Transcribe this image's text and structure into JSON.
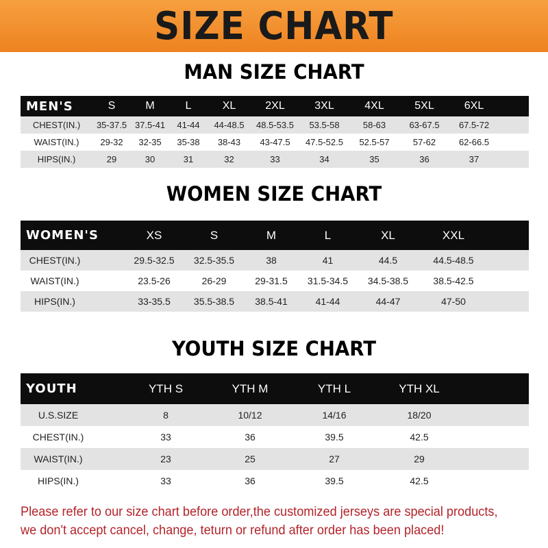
{
  "banner_title": "SIZE CHART",
  "colors": {
    "banner": "#f08a24",
    "header_row": "#0d0d0d",
    "stripe": "#e3e3e3",
    "note": "#b3232a"
  },
  "men": {
    "title": "MAN SIZE CHART",
    "header": [
      "MEN'S",
      "S",
      "M",
      "L",
      "XL",
      "2XL",
      "3XL",
      "4XL",
      "5XL",
      "6XL"
    ],
    "rows": [
      [
        "CHEST(IN.)",
        "35-37.5",
        "37.5-41",
        "41-44",
        "44-48.5",
        "48.5-53.5",
        "53.5-58",
        "58-63",
        "63-67.5",
        "67.5-72"
      ],
      [
        "WAIST(IN.)",
        "29-32",
        "32-35",
        "35-38",
        "38-43",
        "43-47.5",
        "47.5-52.5",
        "52.5-57",
        "57-62",
        "62-66.5"
      ],
      [
        "HIPS(IN.)",
        "29",
        "30",
        "31",
        "32",
        "33",
        "34",
        "35",
        "36",
        "37"
      ]
    ]
  },
  "women": {
    "title": "WOMEN SIZE CHART",
    "header": [
      "WOMEN'S",
      "XS",
      "S",
      "M",
      "L",
      "XL",
      "XXL"
    ],
    "rows": [
      [
        "CHEST(IN.)",
        "29.5-32.5",
        "32.5-35.5",
        "38",
        "41",
        "44.5",
        "44.5-48.5"
      ],
      [
        "WAIST(IN.)",
        "23.5-26",
        "26-29",
        "29-31.5",
        "31.5-34.5",
        "34.5-38.5",
        "38.5-42.5"
      ],
      [
        "HIPS(IN.)",
        "33-35.5",
        "35.5-38.5",
        "38.5-41",
        "41-44",
        "44-47",
        "47-50"
      ]
    ]
  },
  "youth": {
    "title": "YOUTH SIZE CHART",
    "header": [
      "YOUTH",
      "YTH S",
      "YTH M",
      "YTH L",
      "YTH XL"
    ],
    "rows": [
      [
        "U.S.SIZE",
        "8",
        "10/12",
        "14/16",
        "18/20"
      ],
      [
        "CHEST(IN.)",
        "33",
        "36",
        "39.5",
        "42.5"
      ],
      [
        "WAIST(IN.)",
        "23",
        "25",
        "27",
        "29"
      ],
      [
        "HIPS(IN.)",
        "33",
        "36",
        "39.5",
        "42.5"
      ]
    ]
  },
  "note": {
    "line1": "Please refer to our size chart before order,the customized jerseys are special products,",
    "line2": "we don't accept cancel, change, teturn or refund after order has been placed!"
  }
}
